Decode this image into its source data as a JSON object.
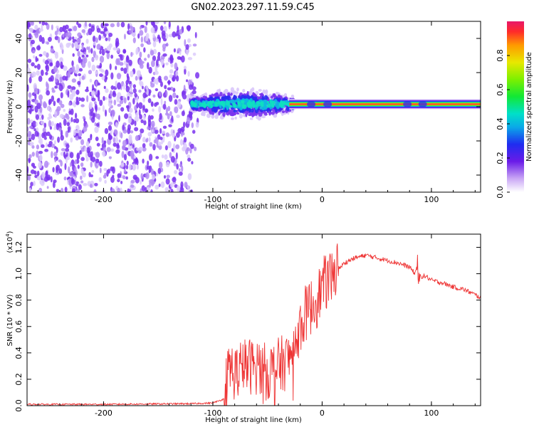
{
  "title": "GN02.2023.297.11.59.C45",
  "colors": {
    "snr_line": "#ee3333",
    "scatter_purple": "#7a33ee",
    "axis": "#000000"
  },
  "chart_data": [
    {
      "type": "heatmap",
      "name": "spectrogram",
      "title": "GN02.2023.297.11.59.C45",
      "xlabel": "Height of straight line (km)",
      "ylabel": "Frequency (Hz)",
      "xlim": [
        -270,
        145
      ],
      "ylim": [
        -50,
        50
      ],
      "xticks": [
        -200,
        -100,
        0,
        100
      ],
      "yticks": [
        -40,
        -20,
        0,
        20,
        40
      ],
      "xtick_labels": [
        "-200",
        "-100",
        "0",
        "100"
      ],
      "ytick_labels": [
        "-40",
        "-20",
        "0",
        "20",
        "40"
      ],
      "noise_region_x": [
        -270,
        -110
      ],
      "signal_band": {
        "x_start": -120,
        "x_end": 145,
        "center_frequency": 1.5,
        "turbulent_range_x": [
          -120,
          -25
        ],
        "turbulent_halfwidth": 9,
        "narrow_halfwidth": 1.5
      },
      "colorbar": {
        "label": "Normalized spectral amplitude",
        "range": [
          0.0,
          1.0
        ],
        "ticks": [
          0.0,
          0.2,
          0.4,
          0.6,
          0.8
        ],
        "tick_labels": [
          "0.0",
          "0.2",
          "0.4",
          "0.6",
          "0.8"
        ]
      }
    },
    {
      "type": "line",
      "name": "snr",
      "xlabel": "Height of straight line (km)",
      "ylabel": "SNR (10 * V/V)",
      "multiplier_label": "(x10",
      "multiplier_exp": "4",
      "xlim": [
        -270,
        145
      ],
      "ylim": [
        0,
        1.3
      ],
      "xticks": [
        -200,
        -100,
        0,
        100
      ],
      "yticks": [
        0.0,
        0.2,
        0.4,
        0.6,
        0.8,
        1.0,
        1.2
      ],
      "xtick_labels": [
        "-200",
        "-100",
        "0",
        "100"
      ],
      "ytick_labels": [
        "0.0",
        "0.2",
        "0.4",
        "0.6",
        "0.8",
        "1.0",
        "1.2"
      ],
      "series": [
        {
          "name": "SNR",
          "x": [
            -270,
            -200,
            -120,
            -100,
            -90,
            -85,
            -80,
            -70,
            -60,
            -50,
            -40,
            -30,
            -25,
            -20,
            -15,
            -10,
            -5,
            0,
            5,
            10,
            20,
            30,
            40,
            50,
            60,
            70,
            80,
            85,
            88,
            90,
            95,
            100,
            110,
            120,
            130,
            140,
            145
          ],
          "y": [
            0.01,
            0.01,
            0.015,
            0.02,
            0.05,
            0.3,
            0.25,
            0.3,
            0.3,
            0.25,
            0.3,
            0.35,
            0.5,
            0.6,
            0.7,
            0.75,
            0.8,
            0.9,
            0.95,
            1.0,
            1.08,
            1.12,
            1.14,
            1.12,
            1.1,
            1.08,
            1.05,
            1.0,
            1.1,
            0.98,
            0.98,
            0.95,
            0.93,
            0.9,
            0.88,
            0.84,
            0.82
          ]
        }
      ]
    }
  ]
}
